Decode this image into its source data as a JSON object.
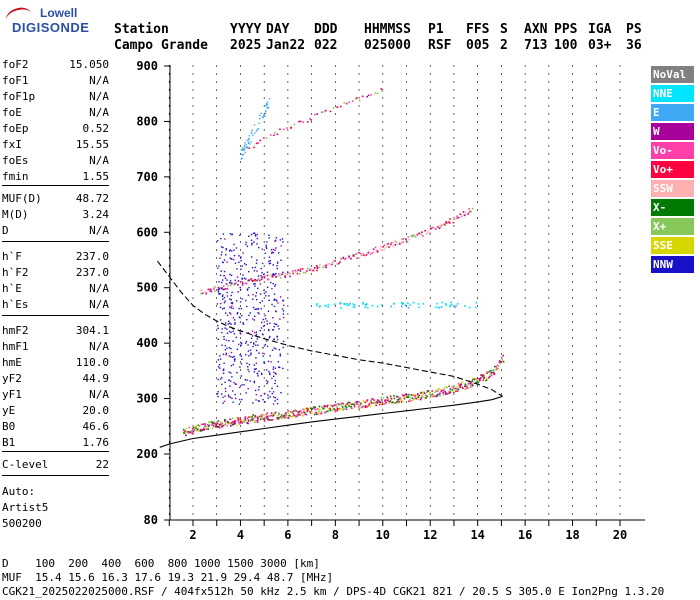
{
  "logo": {
    "line1": "Lowell",
    "line2": "DIGISONDE"
  },
  "header": {
    "columns": [
      {
        "label": "Station",
        "value": "Campo Grande"
      },
      {
        "label": "YYYY",
        "value": "2025"
      },
      {
        "label": "DAY",
        "value": "Jan22"
      },
      {
        "label": "DDD",
        "value": "022"
      },
      {
        "label": "HHMMSS",
        "value": "025000"
      },
      {
        "label": "P1",
        "value": "RSF"
      },
      {
        "label": "FFS",
        "value": "005"
      },
      {
        "label": "S",
        "value": "2"
      },
      {
        "label": "AXN",
        "value": "713"
      },
      {
        "label": "PPS",
        "value": "100"
      },
      {
        "label": "IGA",
        "value": "03+"
      },
      {
        "label": "PS",
        "value": "36"
      }
    ]
  },
  "params": [
    {
      "label": "foF2",
      "value": "15.050"
    },
    {
      "label": "foF1",
      "value": "N/A"
    },
    {
      "label": "foF1p",
      "value": "N/A"
    },
    {
      "label": "foE",
      "value": "N/A"
    },
    {
      "label": "foEp",
      "value": "0.52"
    },
    {
      "label": "fxI",
      "value": "15.55"
    },
    {
      "label": "foEs",
      "value": "N/A"
    },
    {
      "label": "fmin",
      "value": "1.55"
    },
    {
      "label": "MUF(D)",
      "value": "48.72"
    },
    {
      "label": "M(D)",
      "value": "3.24"
    },
    {
      "label": "D",
      "value": "N/A"
    },
    {
      "label": "h`F",
      "value": "237.0"
    },
    {
      "label": "h`F2",
      "value": "237.0"
    },
    {
      "label": "h`E",
      "value": "N/A"
    },
    {
      "label": "h`Es",
      "value": "N/A"
    },
    {
      "label": "hmF2",
      "value": "304.1"
    },
    {
      "label": "hmF1",
      "value": "N/A"
    },
    {
      "label": "hmE",
      "value": "110.0"
    },
    {
      "label": "yF2",
      "value": "44.9"
    },
    {
      "label": "yF1",
      "value": "N/A"
    },
    {
      "label": "yE",
      "value": "20.0"
    },
    {
      "label": "B0",
      "value": "46.6"
    },
    {
      "label": "B1",
      "value": "1.76"
    },
    {
      "label": "C-level",
      "value": "22"
    }
  ],
  "auto": {
    "line1": "Auto:",
    "line2": "Artist5",
    "line3": "500200"
  },
  "legend": [
    {
      "label": "NoVal",
      "color": "#808080"
    },
    {
      "label": "NNE",
      "color": "#00e5ff"
    },
    {
      "label": "E",
      "color": "#3fa9f5"
    },
    {
      "label": "W",
      "color": "#a8009a"
    },
    {
      "label": "Vo-",
      "color": "#ff40a8"
    },
    {
      "label": "Vo+",
      "color": "#ff0040"
    },
    {
      "label": "SSW",
      "color": "#ffb0b0"
    },
    {
      "label": "X-",
      "color": "#007a00"
    },
    {
      "label": "X+",
      "color": "#86c85a"
    },
    {
      "label": "SSE",
      "color": "#d6d600"
    },
    {
      "label": "NNW",
      "color": "#1a10c8"
    }
  ],
  "footer": {
    "line1": "D    100  200  400  600  800 1000 1500 3000 [km]",
    "line2": "MUF  15.4 15.6 16.3 17.6 19.3 21.9 29.4 48.7 [MHz]",
    "line3": "CGK21_2025022025000.RSF / 404fx512h 50 kHz 2.5 km / DPS-4D CGK21 821 / 20.5 S 305.0 E Ion2Png 1.3.20"
  },
  "chart_data": {
    "type": "scatter",
    "xlabel": "",
    "ylabel": "",
    "xlim": [
      0.5,
      21.0
    ],
    "ylim": [
      80,
      900
    ],
    "x_ticks": [
      2,
      4,
      6,
      8,
      10,
      12,
      14,
      16,
      18,
      20
    ],
    "y_ticks": [
      80,
      200,
      300,
      400,
      500,
      600,
      700,
      800,
      900
    ],
    "grid": "dashed vertical at every 1 MHz",
    "traces": [
      {
        "name": "F2 O-trace",
        "x": [
          1.6,
          2.5,
          3.5,
          4.5,
          5.5,
          6.5,
          7.5,
          8.5,
          9.5,
          10.5,
          11.5,
          12.5,
          13.5,
          14.3,
          14.8,
          15.1
        ],
        "y": [
          240,
          252,
          258,
          265,
          270,
          276,
          282,
          288,
          294,
          300,
          306,
          314,
          326,
          340,
          356,
          376
        ]
      },
      {
        "name": "F2 second hop",
        "x": [
          2.3,
          3.0,
          4.0,
          5.0,
          6.0,
          7.0,
          8.0,
          9.0,
          10.0,
          11.0,
          12.0,
          13.0,
          13.8
        ],
        "y": [
          492,
          500,
          510,
          518,
          526,
          535,
          548,
          560,
          574,
          588,
          605,
          625,
          645
        ]
      },
      {
        "name": "F2 third hop",
        "x": [
          4.0,
          5.0,
          6.0,
          7.0,
          8.0,
          9.0,
          10.0
        ],
        "y": [
          748,
          770,
          790,
          808,
          826,
          842,
          860
        ]
      },
      {
        "name": "Ne profile (solid)",
        "x": [
          0.6,
          1.0,
          2.0,
          3.0,
          4.0,
          5.0,
          6.0,
          7.0,
          8.0,
          9.0,
          10.0,
          11.0,
          12.0,
          13.0,
          14.0,
          14.6,
          15.05
        ],
        "y": [
          212,
          218,
          228,
          234,
          240,
          246,
          252,
          258,
          263,
          268,
          273,
          278,
          283,
          288,
          294,
          298,
          304
        ]
      },
      {
        "name": "Ne profile (dashed)",
        "x": [
          0.5,
          1.0,
          1.5,
          2.0,
          2.5,
          3.0,
          3.5,
          4.0,
          5.0,
          6.0,
          7.0,
          8.0,
          9.0,
          10.0,
          11.0,
          12.0,
          13.0,
          14.0,
          14.6,
          15.05
        ],
        "y": [
          548,
          520,
          492,
          468,
          452,
          440,
          430,
          422,
          408,
          396,
          386,
          378,
          370,
          364,
          356,
          348,
          340,
          326,
          316,
          304
        ]
      },
      {
        "name": "NNE sporadic",
        "x": [
          7.0,
          8.0,
          9.0,
          10.0,
          11.0,
          12.0,
          13.0,
          14.0
        ],
        "y": [
          470,
          469,
          471,
          470,
          472,
          470,
          471,
          472
        ]
      },
      {
        "name": "Spread F cluster",
        "x": [
          3.0,
          3.5,
          4.0,
          4.5,
          5.0,
          5.5
        ],
        "y": [
          300,
          320,
          360,
          420,
          480,
          550
        ]
      }
    ]
  }
}
